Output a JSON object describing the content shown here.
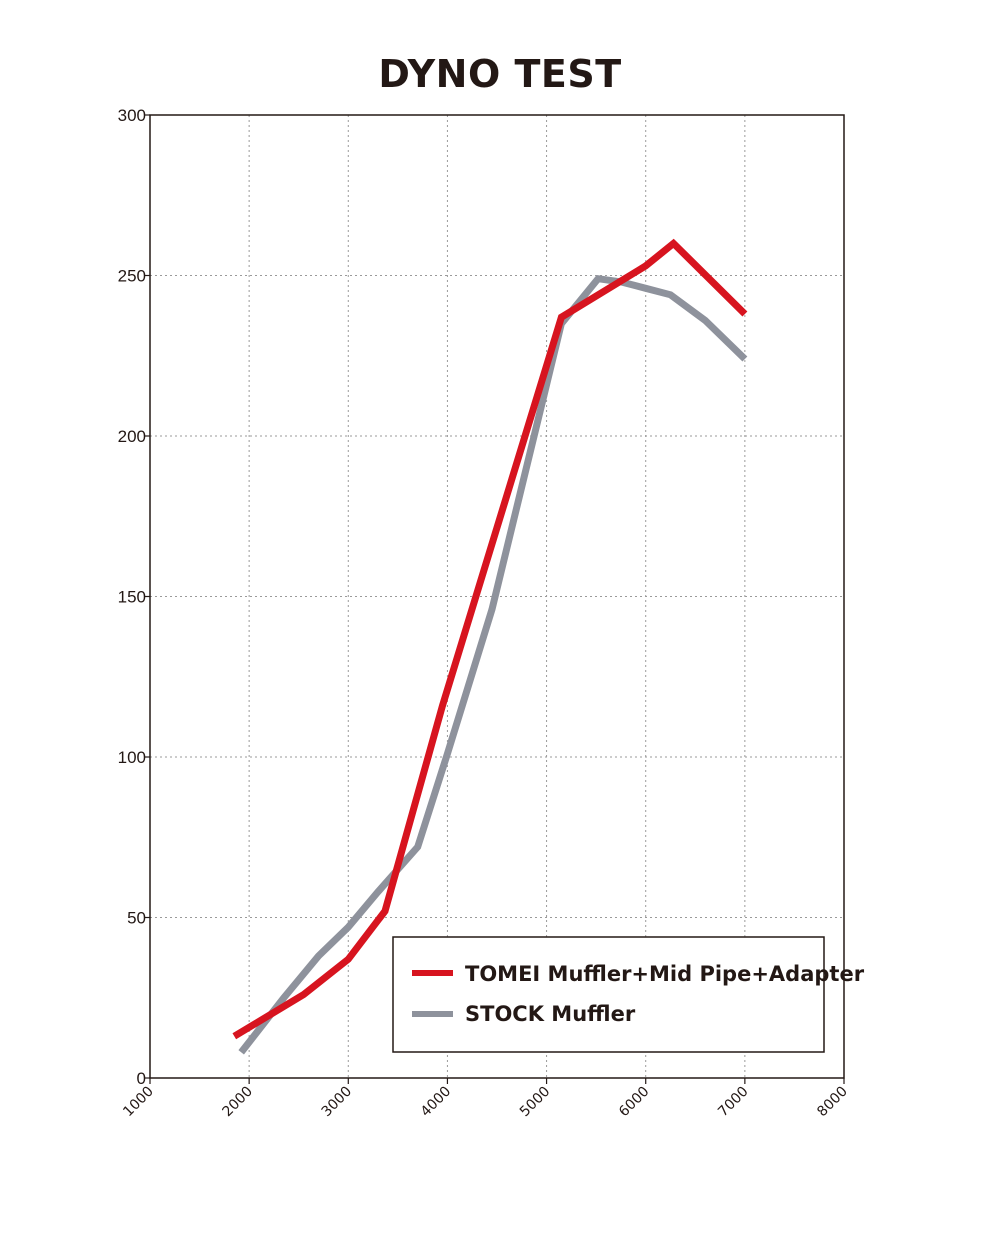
{
  "chart_data": {
    "type": "line",
    "title": "DYNO TEST",
    "xlabel": "",
    "ylabel": "",
    "xlim": [
      1000,
      8000
    ],
    "ylim": [
      0,
      300
    ],
    "xticks": [
      "1000",
      "2000",
      "3000",
      "4000",
      "5000",
      "6000",
      "7000",
      "8000"
    ],
    "yticks": [
      "0",
      "50",
      "100",
      "150",
      "200",
      "250",
      "300"
    ],
    "grid": true,
    "legend_position": "bottom-right",
    "series": [
      {
        "name": "TOMEI Muffler+Mid Pipe+Adapter",
        "color": "#d7141f",
        "x": [
          1850,
          2550,
          3000,
          3370,
          3950,
          5150,
          6000,
          6280,
          7000
        ],
        "y": [
          13,
          26,
          37,
          52,
          116,
          237,
          253,
          260,
          238
        ]
      },
      {
        "name": "STOCK Muffler",
        "color": "#8e929c",
        "x": [
          1920,
          2350,
          2700,
          3000,
          3300,
          3700,
          4000,
          4450,
          5150,
          5520,
          5750,
          6000,
          6250,
          6600,
          7000
        ],
        "y": [
          8,
          25,
          38,
          47,
          58,
          72,
          101,
          146,
          235,
          249,
          248,
          246,
          244,
          236,
          224
        ]
      }
    ]
  }
}
